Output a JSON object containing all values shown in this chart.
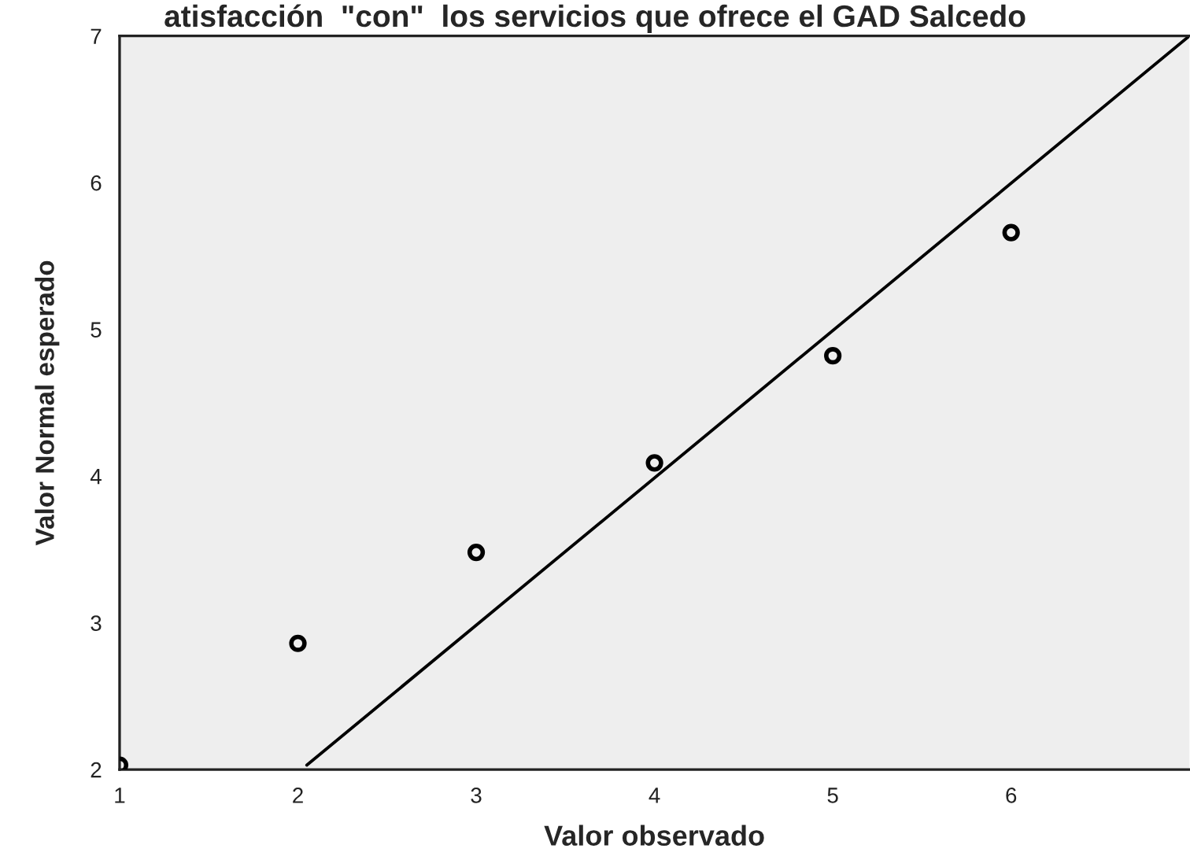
{
  "chart_data": {
    "type": "scatter",
    "title": "atisfacción  \"con\"  los servicios que ofrece el GAD Salcedo",
    "xlabel": "Valor observado",
    "ylabel": "Valor Normal esperado",
    "xlim": [
      1,
      7
    ],
    "ylim": [
      2,
      7
    ],
    "xticks": [
      1,
      2,
      3,
      4,
      5,
      6
    ],
    "yticks": [
      2,
      3,
      4,
      5,
      6,
      7
    ],
    "series": [
      {
        "color": "#000000",
        "marker": "circle",
        "x": [
          1,
          2,
          3,
          4,
          5,
          6
        ],
        "values": [
          2.03,
          2.86,
          3.48,
          4.09,
          4.82,
          5.66
        ]
      },
      {
        "type": "line",
        "color": "#000000",
        "line_style": "solid",
        "x": [
          2.05,
          7
        ],
        "values": [
          2.03,
          7
        ]
      }
    ]
  }
}
